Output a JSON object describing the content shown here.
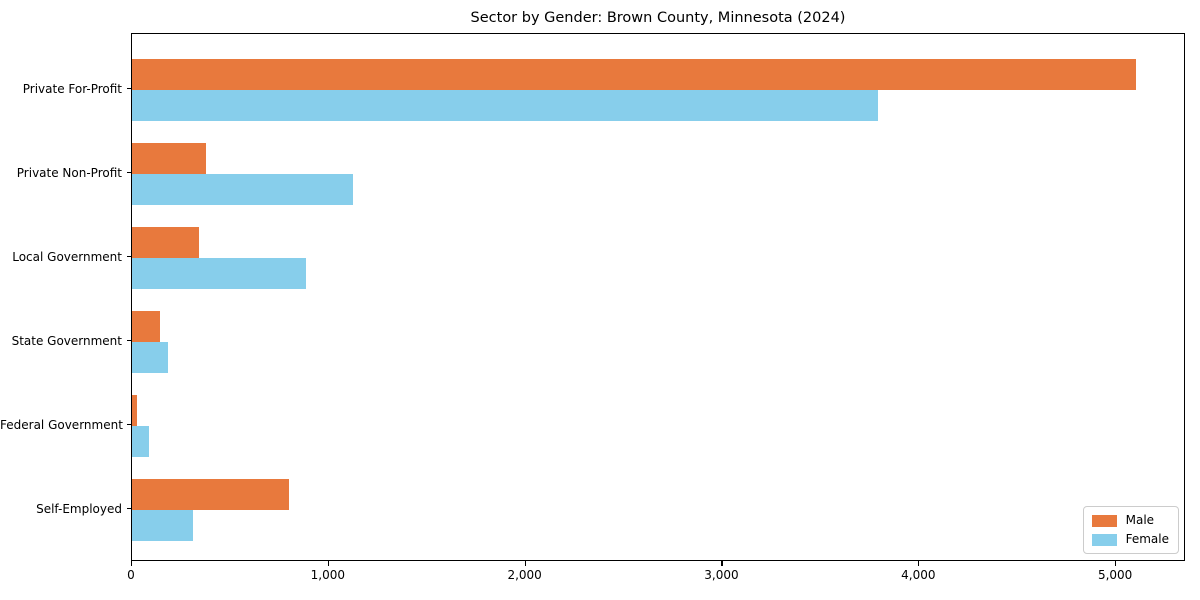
{
  "title": "Sector by Gender: Brown County, Minnesota (2024)",
  "chart_data": {
    "type": "bar",
    "orientation": "horizontal",
    "title": "Sector by Gender: Brown County, Minnesota (2024)",
    "categories": [
      "Private For-Profit",
      "Private Non-Profit",
      "Local Government",
      "State Government",
      "Federal Government",
      "Self-Employed"
    ],
    "series": [
      {
        "name": "Male",
        "color": "#E8793D",
        "values": [
          5100,
          375,
          340,
          140,
          25,
          795
        ]
      },
      {
        "name": "Female",
        "color": "#87CEEB",
        "values": [
          3790,
          1125,
          885,
          185,
          85,
          310
        ]
      }
    ],
    "xlabel": "",
    "ylabel": "",
    "xlim": [
      0,
      5355
    ],
    "xticks": [
      0,
      1000,
      2000,
      3000,
      4000,
      5000
    ],
    "grid": false,
    "legend_position": "lower right",
    "legend_labels": [
      "Male",
      "Female"
    ]
  }
}
